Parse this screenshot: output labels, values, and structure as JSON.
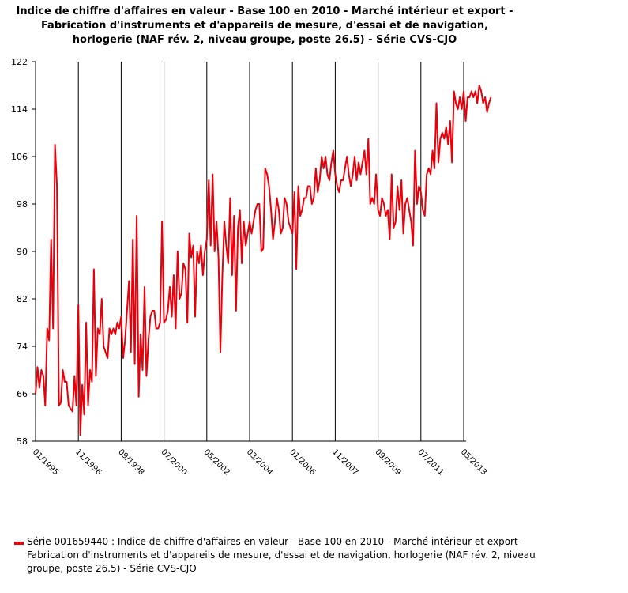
{
  "chart_data": {
    "type": "line",
    "title": "Indice de chiffre d'affaires en valeur - Base 100 en 2010 - Marché intérieur et export - Fabrication d'instruments et d'appareils de mesure, d'essai et de navigation, horlogerie (NAF rév. 2, niveau groupe, poste 26.5) - Série CVS-CJO",
    "ylim": [
      58,
      122
    ],
    "yticks": [
      "58",
      "66",
      "74",
      "82",
      "90",
      "98",
      "106",
      "114",
      "122"
    ],
    "xticks": [
      "01/1995",
      "11/1996",
      "09/1998",
      "07/2000",
      "05/2002",
      "03/2004",
      "01/2006",
      "11/2007",
      "09/2009",
      "07/2011",
      "05/2013"
    ],
    "grid": "vertical lines at x ticks",
    "legend_position": "bottom",
    "series": [
      {
        "name": "Série 001659440 : Indice de chiffre d'affaires en valeur - Base 100 en 2010 - Marché intérieur et export - Fabrication d'instruments et d'appareils de mesure, d'essai et de navigation, horlogerie (NAF rév. 2, niveau groupe, poste 26.5) - Série CVS-CJO",
        "color": "#e8000b",
        "start": "01/1995",
        "values": [
          66,
          70.5,
          67,
          70,
          69,
          64,
          77,
          75,
          92,
          77,
          108,
          101,
          64,
          64.5,
          70,
          68,
          68,
          64,
          63.5,
          63,
          69,
          64,
          81,
          59,
          67.5,
          62.5,
          78,
          64,
          70,
          68,
          87,
          69,
          77,
          76,
          82,
          74,
          73,
          72,
          77,
          76,
          77,
          76,
          78,
          77,
          79,
          72,
          75,
          80,
          85,
          73,
          92,
          71,
          96,
          65.5,
          76,
          70,
          84,
          69,
          75,
          79,
          80,
          80,
          77,
          77,
          78,
          95,
          78,
          78.5,
          80,
          84,
          79,
          86,
          77,
          90,
          82,
          83,
          88,
          87,
          78,
          93,
          89,
          91,
          79,
          90,
          88,
          91,
          86,
          90,
          92,
          102,
          91,
          103,
          90,
          95,
          89,
          73,
          86,
          95,
          91,
          88,
          99,
          86,
          96,
          80,
          94,
          97,
          88,
          95,
          91,
          93,
          95,
          93,
          95,
          97,
          98,
          98,
          90,
          90.5,
          104,
          103,
          101,
          97,
          92,
          95,
          99,
          97,
          93,
          94,
          99,
          98,
          95,
          94,
          93,
          100,
          87,
          101,
          96,
          97,
          99,
          99,
          101,
          101,
          98,
          99,
          104,
          100,
          102,
          106,
          104,
          106,
          103,
          102,
          105,
          107,
          103,
          101,
          100,
          102,
          102,
          104,
          106,
          103,
          101,
          103,
          106,
          102,
          105,
          103,
          105,
          107,
          103,
          109,
          98,
          99,
          98,
          103,
          97,
          96,
          99,
          98,
          96,
          97,
          92,
          103,
          94,
          95,
          101,
          97,
          102,
          93,
          98,
          99,
          97,
          95,
          91,
          107,
          98,
          101,
          100,
          97,
          96,
          103,
          104,
          103,
          107,
          104,
          115,
          105,
          109,
          110,
          109,
          111,
          108,
          112,
          105,
          117,
          115,
          114,
          116,
          114,
          117,
          112,
          116,
          116,
          117,
          116,
          117,
          115,
          118,
          117,
          115,
          116,
          113.5,
          115,
          116
        ]
      }
    ]
  }
}
